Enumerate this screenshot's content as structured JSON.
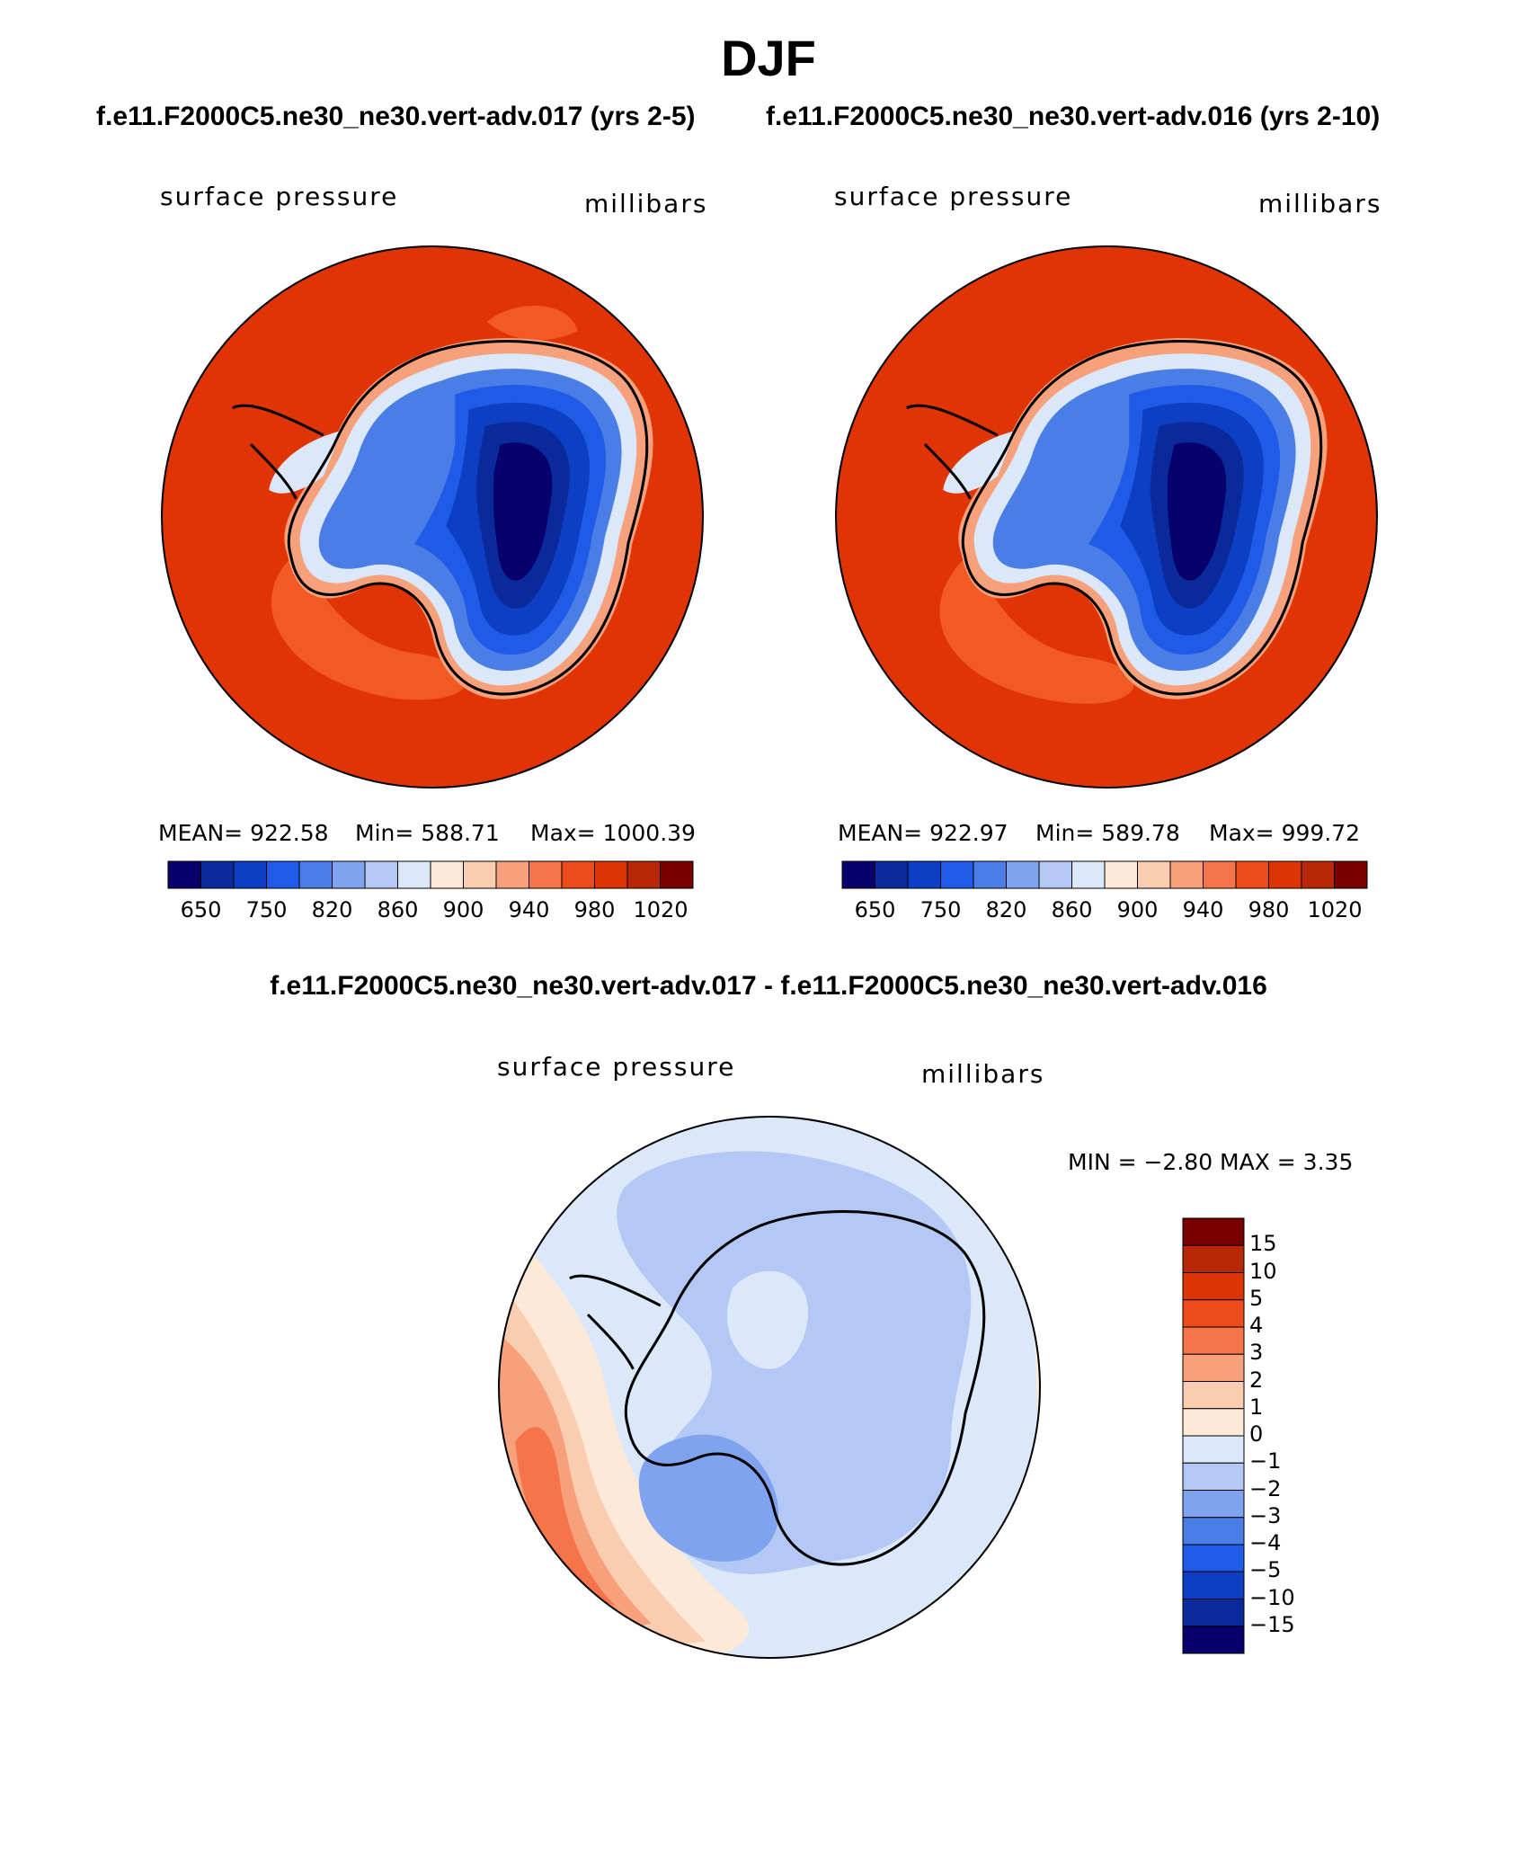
{
  "figure": {
    "title": "DJF",
    "subtitle_left": "f.e11.F2000C5.ne30_ne30.vert-adv.017 (yrs 2-5)",
    "subtitle_right": "f.e11.F2000C5.ne30_ne30.vert-adv.016 (yrs 2-10)",
    "diff_title": "f.e11.F2000C5.ne30_ne30.vert-adv.017 - f.e11.F2000C5.ne30_ne30.vert-adv.016"
  },
  "panels": {
    "p1": {
      "variable": "surface pressure",
      "units": "millibars",
      "mean_text": "MEAN=  922.58",
      "min_text": "Min=  588.71",
      "max_text": "Max=  1000.39"
    },
    "p2": {
      "variable": "surface pressure",
      "units": "millibars",
      "mean_text": "MEAN=  922.97",
      "min_text": "Min=  589.78",
      "max_text": "Max=  999.72"
    },
    "p3": {
      "variable": "surface pressure",
      "units": "millibars",
      "minmax_text": "MIN =   −2.80  MAX =      3.35"
    }
  },
  "colors": {
    "abs_scale": [
      "#08006b",
      "#0a2a9c",
      "#0d3fc4",
      "#1f5be6",
      "#4a7de6",
      "#7fa3ee",
      "#b3c8f5",
      "#dbe8fa",
      "#fde9d8",
      "#fbcdb0",
      "#f6a07c",
      "#f5744a",
      "#ee4c1d",
      "#dd3405",
      "#b82807",
      "#7a0000"
    ],
    "diff_scale": [
      "#08006b",
      "#0a2a9c",
      "#0d3fc4",
      "#1f5be6",
      "#4a7de6",
      "#7fa3ee",
      "#b3c8f5",
      "#dbe8fa",
      "#fde9d8",
      "#fbcdb0",
      "#f6a07c",
      "#f5744a",
      "#ee4c1d",
      "#dd3405",
      "#b82807",
      "#7a0000"
    ],
    "ocean_abs": "#e03404",
    "ocean_abs_low": "#f15a22",
    "coast": "#000000"
  },
  "chart_data": [
    {
      "type": "heatmap",
      "name": "model 017 surface pressure",
      "title": "surface pressure",
      "units": "millibars",
      "colorbar_ticks": [
        "650",
        "750",
        "820",
        "860",
        "900",
        "940",
        "980",
        "1020"
      ],
      "stats": {
        "mean": 922.58,
        "min": 588.71,
        "max": 1000.39
      }
    },
    {
      "type": "heatmap",
      "name": "model 016 surface pressure",
      "title": "surface pressure",
      "units": "millibars",
      "colorbar_ticks": [
        "650",
        "750",
        "820",
        "860",
        "900",
        "940",
        "980",
        "1020"
      ],
      "stats": {
        "mean": 922.97,
        "min": 589.78,
        "max": 999.72
      }
    },
    {
      "type": "heatmap",
      "name": "difference 017 - 016",
      "title": "surface pressure",
      "units": "millibars",
      "colorbar_ticks": [
        "15",
        "10",
        "5",
        "4",
        "3",
        "2",
        "1",
        "0",
        "−1",
        "−2",
        "−3",
        "−4",
        "−5",
        "−10",
        "−15"
      ],
      "stats": {
        "min": -2.8,
        "max": 3.35
      }
    }
  ]
}
